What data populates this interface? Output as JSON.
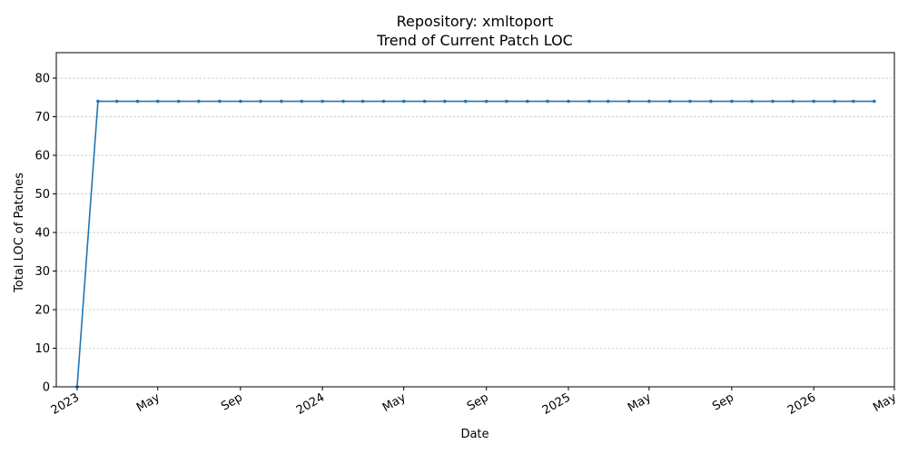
{
  "chart_data": {
    "type": "line",
    "title": "Repository: xmltoport",
    "subtitle": "Trend of Current Patch LOC",
    "xlabel": "Date",
    "ylabel": "Total LOC of Patches",
    "xlim": [
      "2022-12-01",
      "2026-05-01"
    ],
    "ylim": [
      0,
      86.6
    ],
    "yticks": [
      0,
      10,
      20,
      30,
      40,
      50,
      60,
      70,
      80
    ],
    "xticks": [
      {
        "date": "2023-01-01",
        "label": "2023"
      },
      {
        "date": "2023-05-01",
        "label": "May"
      },
      {
        "date": "2023-09-01",
        "label": "Sep"
      },
      {
        "date": "2024-01-01",
        "label": "2024"
      },
      {
        "date": "2024-05-01",
        "label": "May"
      },
      {
        "date": "2024-09-01",
        "label": "Sep"
      },
      {
        "date": "2025-01-01",
        "label": "2025"
      },
      {
        "date": "2025-05-01",
        "label": "May"
      },
      {
        "date": "2025-09-01",
        "label": "Sep"
      },
      {
        "date": "2026-01-01",
        "label": "2026"
      },
      {
        "date": "2026-05-01",
        "label": "May"
      }
    ],
    "grid": "y-dashed",
    "line_color": "#1f77b4",
    "series": [
      {
        "x": [
          "2023-01-01",
          "2023-02-01",
          "2023-03-01",
          "2023-04-01",
          "2023-05-01",
          "2023-06-01",
          "2023-07-01",
          "2023-08-01",
          "2023-09-01",
          "2023-10-01",
          "2023-11-01",
          "2023-12-01",
          "2024-01-01",
          "2024-02-01",
          "2024-03-01",
          "2024-04-01",
          "2024-05-01",
          "2024-06-01",
          "2024-07-01",
          "2024-08-01",
          "2024-09-01",
          "2024-10-01",
          "2024-11-01",
          "2024-12-01",
          "2025-01-01",
          "2025-02-01",
          "2025-03-01",
          "2025-04-01",
          "2025-05-01",
          "2025-06-01",
          "2025-07-01",
          "2025-08-01",
          "2025-09-01",
          "2025-10-01",
          "2025-11-01",
          "2025-12-01",
          "2026-01-01",
          "2026-02-01",
          "2026-03-01",
          "2026-04-01"
        ],
        "y": [
          0,
          74,
          74,
          74,
          74,
          74,
          74,
          74,
          74,
          74,
          74,
          74,
          74,
          74,
          74,
          74,
          74,
          74,
          74,
          74,
          74,
          74,
          74,
          74,
          74,
          74,
          74,
          74,
          74,
          74,
          74,
          74,
          74,
          74,
          74,
          74,
          74,
          74,
          74,
          74
        ]
      }
    ]
  }
}
